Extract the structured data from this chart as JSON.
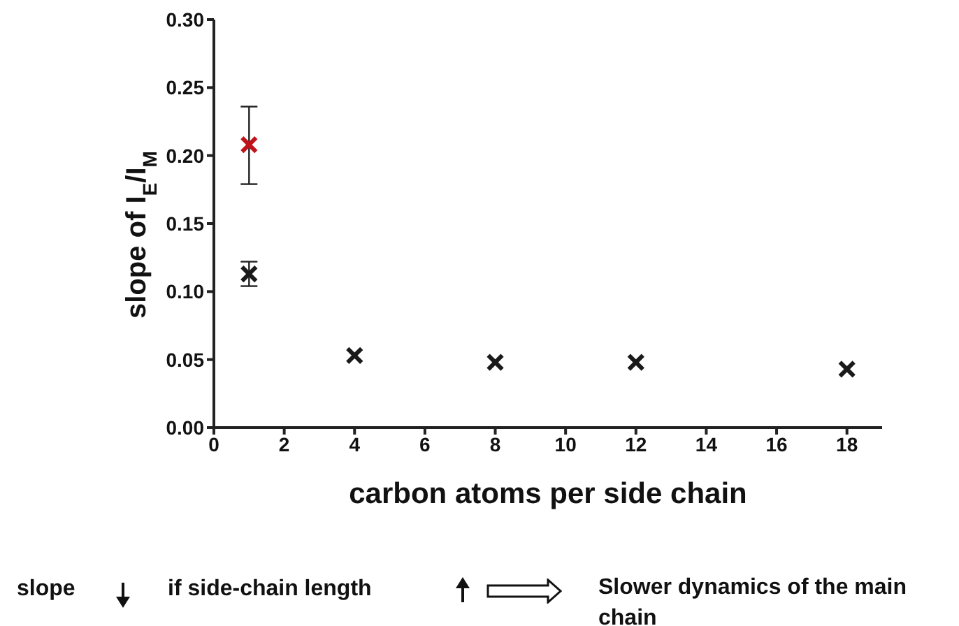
{
  "chart_data": {
    "type": "scatter",
    "xlabel": "carbon atoms per side chain",
    "ylabel": "slope of I$_{E}$/I$_{M}$",
    "xlim": [
      0,
      19
    ],
    "xticks": [
      0,
      2,
      4,
      6,
      8,
      10,
      12,
      14,
      16,
      18
    ],
    "ylim": [
      0,
      0.3
    ],
    "yticks": [
      {
        "value": 0,
        "label": "0.00"
      },
      {
        "value": 0.05,
        "label": "0.05"
      },
      {
        "value": 0.1,
        "label": "0.10"
      },
      {
        "value": 0.15,
        "label": "0.15"
      },
      {
        "value": 0.2,
        "label": "0.20"
      },
      {
        "value": 0.25,
        "label": "0.25"
      },
      {
        "value": 0.3,
        "label": "0.30"
      }
    ],
    "marker": "cross",
    "grid": false,
    "series": [
      {
        "color": "#c0141c",
        "x": [
          1
        ],
        "values": [
          0.208
        ],
        "errors": [
          [
            0.179,
            0.236
          ]
        ]
      },
      {
        "color": "#1a1a1a",
        "x": [
          1,
          4,
          8,
          12,
          18
        ],
        "values": [
          0.113,
          0.053,
          0.048,
          0.048,
          0.043
        ],
        "errors": [
          [
            0.104,
            0.122
          ],
          null,
          null,
          null,
          null
        ]
      }
    ],
    "annotations": [
      "slope",
      "if side-chain length",
      "Slower dynamics of the main chain"
    ]
  }
}
